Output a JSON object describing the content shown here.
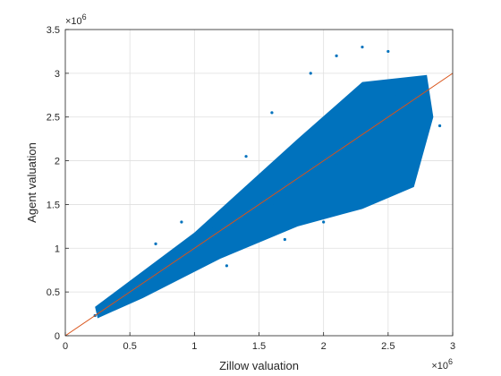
{
  "chart_data": {
    "type": "scatter",
    "title": "",
    "xlabel": "Zillow valuation",
    "ylabel": "Agent valuation",
    "x_exponent_base": "×10",
    "x_exponent_power": "6",
    "y_exponent_base": "×10",
    "y_exponent_power": "6",
    "xlim": [
      0,
      3000000
    ],
    "ylim": [
      0,
      3500000
    ],
    "x_ticks": [
      0,
      500000,
      1000000,
      1500000,
      2000000,
      2500000,
      3000000
    ],
    "x_tick_labels": [
      "0",
      "0.5",
      "1",
      "1.5",
      "2",
      "2.5",
      "3"
    ],
    "y_ticks": [
      0,
      500000,
      1000000,
      1500000,
      2000000,
      2500000,
      3000000,
      3500000
    ],
    "y_tick_labels": [
      "0",
      "0.5",
      "1",
      "1.5",
      "2",
      "2.5",
      "3",
      "3.5"
    ],
    "grid": true,
    "box": true,
    "marker_color": "#0072bd",
    "reference_line_color": "#d95319",
    "reference_line": {
      "x": [
        0,
        3000000
      ],
      "y": [
        0,
        3000000
      ]
    },
    "series": [
      {
        "points": [
          [
            230000,
            230000
          ],
          [
            260000,
            300000
          ],
          [
            300000,
            280000
          ],
          [
            350000,
            380000
          ],
          [
            400000,
            360000
          ],
          [
            450000,
            480000
          ],
          [
            500000,
            460000
          ],
          [
            550000,
            590000
          ],
          [
            600000,
            560000
          ],
          [
            650000,
            700000
          ],
          [
            700000,
            660000
          ],
          [
            750000,
            810000
          ],
          [
            800000,
            770000
          ],
          [
            850000,
            900000
          ],
          [
            900000,
            870000
          ],
          [
            950000,
            1010000
          ],
          [
            1000000,
            960000
          ],
          [
            1050000,
            1120000
          ],
          [
            1100000,
            1060000
          ],
          [
            1150000,
            1230000
          ],
          [
            1200000,
            1150000
          ],
          [
            1250000,
            1310000
          ],
          [
            1300000,
            1240000
          ],
          [
            1350000,
            1420000
          ],
          [
            1400000,
            1330000
          ],
          [
            1450000,
            1520000
          ],
          [
            1500000,
            1420000
          ],
          [
            1550000,
            1620000
          ],
          [
            1600000,
            1500000
          ],
          [
            1650000,
            1730000
          ],
          [
            1700000,
            1590000
          ],
          [
            1750000,
            1850000
          ],
          [
            1800000,
            1680000
          ],
          [
            1850000,
            1950000
          ],
          [
            1900000,
            1770000
          ],
          [
            1950000,
            2060000
          ],
          [
            2000000,
            1850000
          ],
          [
            2050000,
            2170000
          ],
          [
            2100000,
            1960000
          ],
          [
            2150000,
            2280000
          ],
          [
            2200000,
            2040000
          ],
          [
            2250000,
            2400000
          ],
          [
            2300000,
            2130000
          ],
          [
            2350000,
            2520000
          ],
          [
            2400000,
            2230000
          ],
          [
            2450000,
            2640000
          ],
          [
            2500000,
            2330000
          ],
          [
            2550000,
            2760000
          ],
          [
            2600000,
            2450000
          ],
          [
            2650000,
            2880000
          ],
          [
            2700000,
            2560000
          ],
          [
            2750000,
            2700000
          ],
          [
            2800000,
            2650000
          ],
          [
            2900000,
            2400000
          ],
          [
            1900000,
            3000000
          ],
          [
            2100000,
            3200000
          ],
          [
            2300000,
            3300000
          ],
          [
            2500000,
            3250000
          ],
          [
            1600000,
            2550000
          ],
          [
            2000000,
            1300000
          ],
          [
            1700000,
            1100000
          ],
          [
            2400000,
            1600000
          ],
          [
            2600000,
            1850000
          ],
          [
            1250000,
            800000
          ],
          [
            900000,
            1300000
          ],
          [
            700000,
            1050000
          ],
          [
            1400000,
            2050000
          ],
          [
            2200000,
            1500000
          ]
        ]
      }
    ]
  }
}
